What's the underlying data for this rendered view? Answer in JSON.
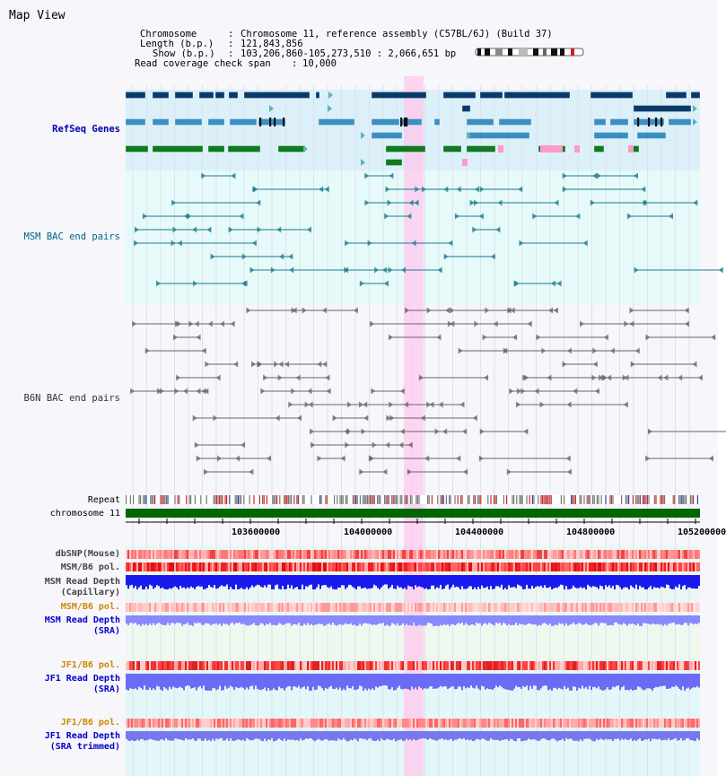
{
  "header": {
    "title": "Map View",
    "chromosome_label": "Chromosome",
    "chromosome_value": "Chromosome 11, reference assembly (C57BL/6J) (Build 37)",
    "length_label": "Length (b.p.)",
    "length_value": "121,843,856",
    "show_label": "Show (b.p.)",
    "show_value": "103,206,860-105,273,510 : 2,066,651 bp",
    "coverage_label": "Read coverage check span",
    "coverage_value": "10,000"
  },
  "tracks": {
    "refseq": "RefSeq Genes",
    "msm_bac": "MSM BAC end pairs",
    "b6n_bac": "B6N BAC end pairs",
    "repeat": "Repeat",
    "chromosome": "chromosome 11",
    "dbsnp": "dbSNP(Mouse)",
    "msm_b6_pol": "MSM/B6 pol.",
    "msm_depth_cap_1": "MSM Read Depth",
    "msm_depth_cap_2": "(Capillary)",
    "msm_b6_pol2": "MSM/B6 pol.",
    "msm_depth_sra_1": "MSM Read Depth",
    "msm_depth_sra_2": "(SRA)",
    "jf1_b6_pol": "JF1/B6 pol.",
    "jf1_depth_sra_1": "JF1 Read Depth",
    "jf1_depth_sra_2": "(SRA)",
    "jf1_b6_pol2": "JF1/B6 pol.",
    "jf1_depth_trim_1": "JF1 Read Depth",
    "jf1_depth_trim_2": "(SRA trimmed)"
  },
  "axis": {
    "ticks": [
      "103600000",
      "104000000",
      "104400000",
      "104800000",
      "105200000"
    ]
  },
  "colors": {
    "refseq_label": "#0000aa",
    "msm_label": "#006688",
    "b6n_label": "#333333",
    "pol_label": "#cc8800",
    "depth_label": "#0000cc",
    "chromosome_bar": "#006600",
    "highlight": "#ffc8ee"
  }
}
